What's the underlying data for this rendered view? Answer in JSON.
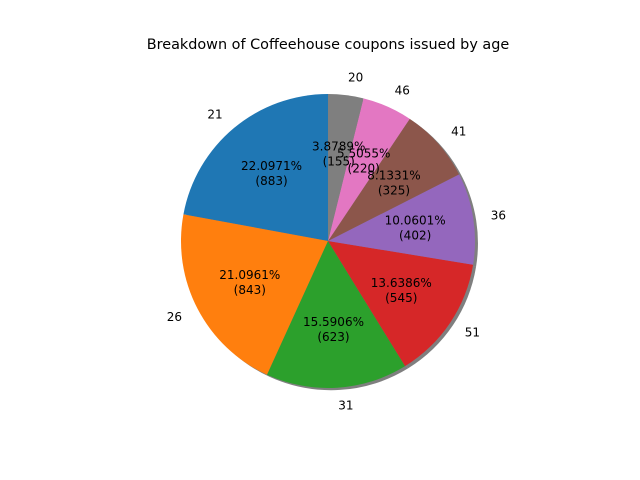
{
  "chart_data": {
    "type": "pie",
    "title": "Breakdown of Coffeehouse coupons issued by age",
    "categories": [
      "21",
      "26",
      "31",
      "51",
      "36",
      "41",
      "46",
      "20"
    ],
    "values": [
      883,
      843,
      623,
      545,
      402,
      325,
      220,
      155
    ],
    "percent_labels": [
      "22.0971%",
      "21.0961%",
      "15.5906%",
      "13.6386%",
      "10.0601%",
      "8.1331%",
      "5.5055%",
      "3.8789%"
    ],
    "count_labels": [
      "(883)",
      "(843)",
      "(623)",
      "(545)",
      "(402)",
      "(325)",
      "(220)",
      "(155)"
    ],
    "colors": [
      "#1f77b4",
      "#ff7f0e",
      "#2ca02c",
      "#d62728",
      "#9467bd",
      "#8c564b",
      "#e377c2",
      "#7f7f7f"
    ],
    "shadow": true,
    "legend": "none"
  }
}
